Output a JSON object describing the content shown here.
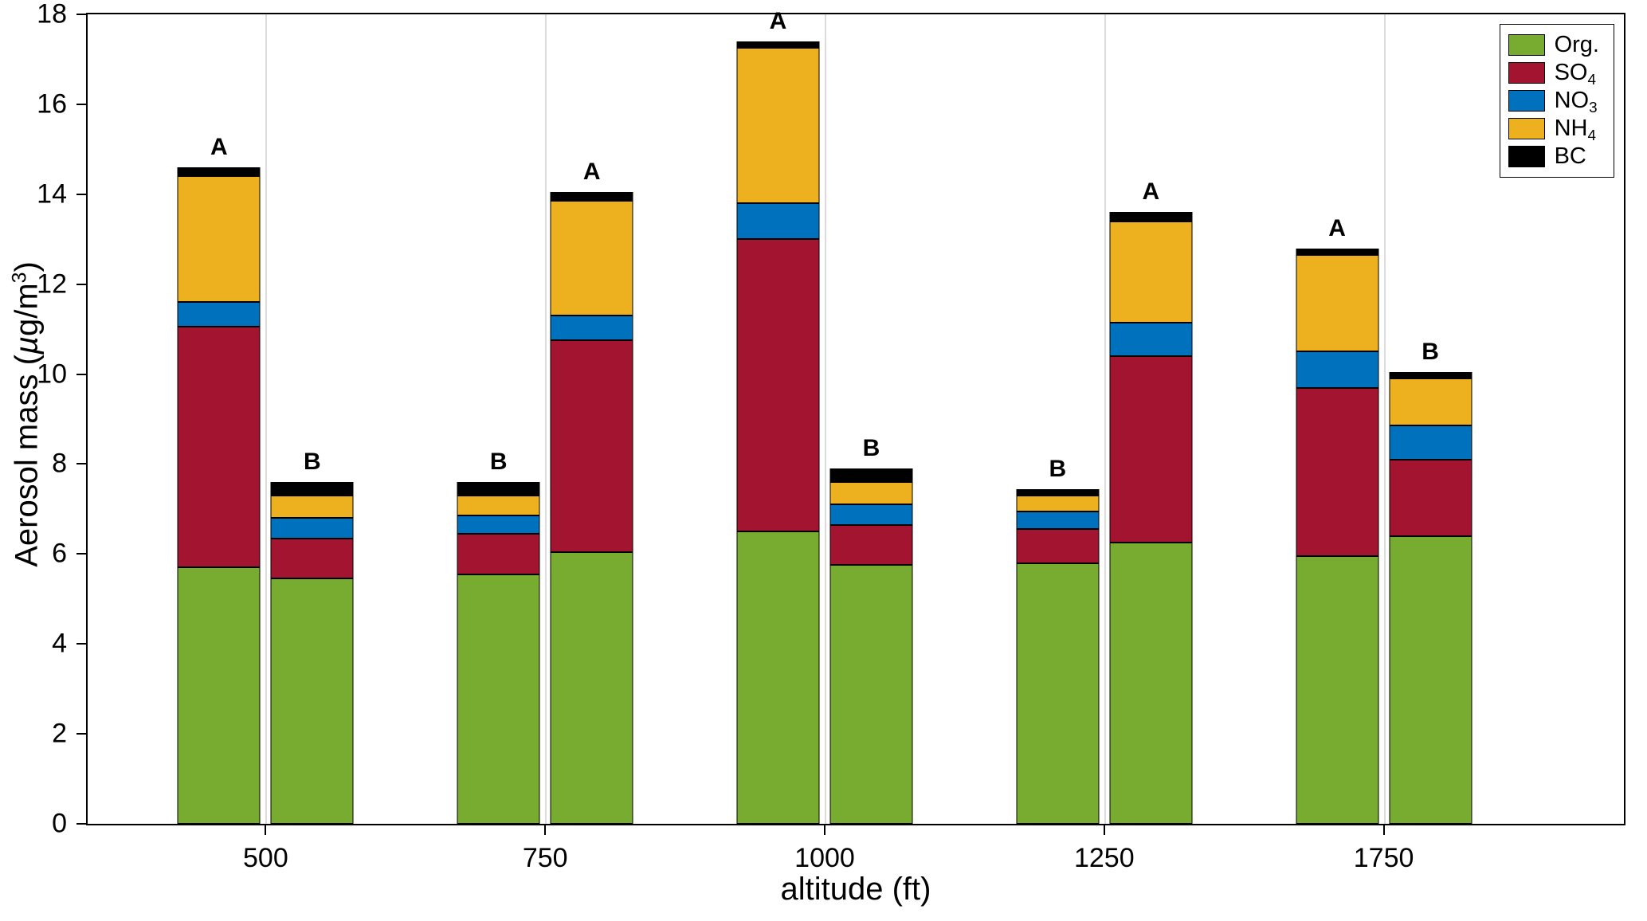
{
  "axes": {
    "xlabel": "altitude (ft)",
    "ylabel": {
      "prefix": "Aerosol mass (",
      "mu": "µ",
      "mid": "g/m",
      "sup": "3",
      "suffix": ")"
    },
    "yticks": [
      "0",
      "2",
      "4",
      "6",
      "8",
      "10",
      "12",
      "14",
      "16",
      "18"
    ]
  },
  "legend": {
    "entries": [
      {
        "main": "Org.",
        "sub": "",
        "color": "#77AC30"
      },
      {
        "main": "SO",
        "sub": "4",
        "color": "#A2142F"
      },
      {
        "main": "NO",
        "sub": "3",
        "color": "#0072BD"
      },
      {
        "main": "NH",
        "sub": "4",
        "color": "#EDB120"
      },
      {
        "main": "BC",
        "sub": "",
        "color": "#000000"
      }
    ]
  },
  "chart_data": {
    "type": "bar",
    "variant": "stacked-grouped",
    "title": "",
    "xlabel": "altitude (ft)",
    "ylabel": "Aerosol mass (ug/m^3)",
    "ylim": [
      0,
      18
    ],
    "ytick_step": 2,
    "grid": "vertical-light-gray-at-group-centers",
    "legend_position": "top-right-inside",
    "series_names": [
      "Org.",
      "SO4",
      "NO3",
      "NH4",
      "BC"
    ],
    "series_colors": [
      "#77AC30",
      "#A2142F",
      "#0072BD",
      "#EDB120",
      "#000000"
    ],
    "groups": [
      {
        "category": "500",
        "bars": [
          {
            "label": "A",
            "values": [
              5.7,
              5.35,
              0.55,
              2.8,
              0.2
            ],
            "total": 14.6
          },
          {
            "label": "B",
            "values": [
              5.45,
              0.9,
              0.45,
              0.5,
              0.3
            ],
            "total": 7.6
          }
        ]
      },
      {
        "category": "750",
        "bars": [
          {
            "label": "B",
            "values": [
              5.55,
              0.9,
              0.4,
              0.45,
              0.3
            ],
            "total": 7.6
          },
          {
            "label": "A",
            "values": [
              6.05,
              4.7,
              0.55,
              2.55,
              0.2
            ],
            "total": 14.05
          }
        ]
      },
      {
        "category": "1000",
        "bars": [
          {
            "label": "A",
            "values": [
              6.5,
              6.5,
              0.8,
              3.45,
              0.15
            ],
            "total": 17.4
          },
          {
            "label": "B",
            "values": [
              5.75,
              0.9,
              0.45,
              0.5,
              0.3
            ],
            "total": 7.9
          }
        ]
      },
      {
        "category": "1250",
        "bars": [
          {
            "label": "B",
            "values": [
              5.8,
              0.75,
              0.4,
              0.35,
              0.15
            ],
            "total": 7.45
          },
          {
            "label": "A",
            "values": [
              6.25,
              4.15,
              0.75,
              2.25,
              0.2
            ],
            "total": 13.6
          }
        ]
      },
      {
        "category": "1750",
        "bars": [
          {
            "label": "A",
            "values": [
              5.95,
              3.75,
              0.8,
              2.15,
              0.15
            ],
            "total": 12.8
          },
          {
            "label": "B",
            "values": [
              6.4,
              1.7,
              0.75,
              1.05,
              0.15
            ],
            "total": 10.05
          }
        ]
      }
    ]
  }
}
